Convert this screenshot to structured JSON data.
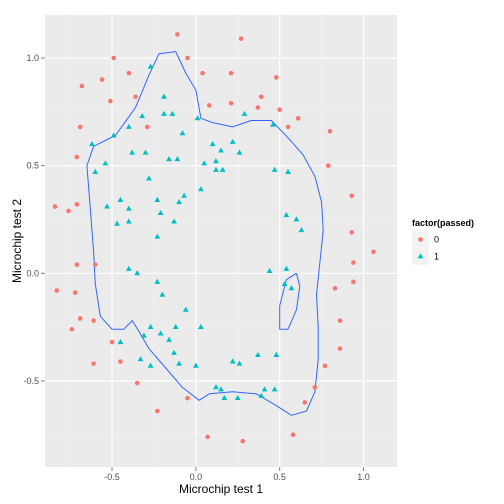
{
  "chart_data": {
    "type": "scatter",
    "xlabel": "Microchip test 1",
    "ylabel": "Microchip test 2",
    "xlim": [
      -0.9,
      1.2
    ],
    "ylim": [
      -0.9,
      1.2
    ],
    "x_ticks": [
      -0.5,
      0.0,
      0.5,
      1.0
    ],
    "x_tick_labels": [
      "-0.5",
      "0.0",
      "0.5",
      "1.0"
    ],
    "y_ticks": [
      -0.5,
      0.0,
      0.5,
      1.0
    ],
    "y_tick_labels": [
      "-0.5",
      "0.0",
      "0.5",
      "1.0"
    ],
    "grid": true,
    "panel_background": "#ebebeb",
    "grid_color": "#ffffff",
    "boundary_color": "#3366ff",
    "legend": {
      "title": "factor(passed)",
      "position": "right",
      "entries": [
        {
          "label": "0",
          "shape": "circle",
          "color": "#f8766d"
        },
        {
          "label": "1",
          "shape": "triangle",
          "color": "#00bfc4"
        }
      ]
    },
    "series": [
      {
        "label": "0",
        "shape": "circle",
        "color": "#f8766d",
        "points": [
          [
            -0.49,
            1.0
          ],
          [
            -0.11,
            1.11
          ],
          [
            -0.05,
            1.0
          ],
          [
            0.27,
            1.09
          ],
          [
            0.21,
            0.93
          ],
          [
            -0.4,
            0.93
          ],
          [
            -0.56,
            0.9
          ],
          [
            -0.68,
            0.87
          ],
          [
            -0.51,
            0.8
          ],
          [
            -0.36,
            0.82
          ],
          [
            0.04,
            0.93
          ],
          [
            0.08,
            0.78
          ],
          [
            0.21,
            0.79
          ],
          [
            0.39,
            0.82
          ],
          [
            0.48,
            0.91
          ],
          [
            0.37,
            0.77
          ],
          [
            0.5,
            0.76
          ],
          [
            0.61,
            0.72
          ],
          [
            0.55,
            0.68
          ],
          [
            0.8,
            0.66
          ],
          [
            0.79,
            0.5
          ],
          [
            0.93,
            0.36
          ],
          [
            0.93,
            0.19
          ],
          [
            0.94,
            0.05
          ],
          [
            1.06,
            0.1
          ],
          [
            0.94,
            -0.04
          ],
          [
            0.83,
            -0.07
          ],
          [
            0.86,
            -0.22
          ],
          [
            0.86,
            -0.35
          ],
          [
            0.77,
            -0.43
          ],
          [
            0.71,
            -0.53
          ],
          [
            0.65,
            -0.6
          ],
          [
            0.58,
            -0.75
          ],
          [
            0.28,
            -0.78
          ],
          [
            0.07,
            -0.76
          ],
          [
            -0.23,
            -0.64
          ],
          [
            -0.05,
            -0.58
          ],
          [
            -0.35,
            -0.51
          ],
          [
            -0.45,
            -0.41
          ],
          [
            -0.61,
            -0.42
          ],
          [
            -0.5,
            -0.32
          ],
          [
            -0.61,
            -0.22
          ],
          [
            -0.74,
            -0.26
          ],
          [
            -0.69,
            -0.21
          ],
          [
            -0.72,
            -0.09
          ],
          [
            -0.83,
            -0.08
          ],
          [
            -0.71,
            0.04
          ],
          [
            -0.6,
            0.04
          ],
          [
            -0.71,
            0.32
          ],
          [
            -0.84,
            0.31
          ],
          [
            -0.76,
            0.29
          ],
          [
            -0.71,
            0.54
          ],
          [
            -0.69,
            0.68
          ],
          [
            -0.29,
            0.68
          ]
        ]
      },
      {
        "label": "1",
        "shape": "triangle",
        "color": "#00bfc4",
        "points": [
          [
            -0.27,
            0.96
          ],
          [
            -0.32,
            0.73
          ],
          [
            -0.49,
            0.64
          ],
          [
            -0.4,
            0.68
          ],
          [
            -0.62,
            0.6
          ],
          [
            -0.19,
            0.74
          ],
          [
            -0.19,
            0.82
          ],
          [
            -0.14,
            0.74
          ],
          [
            -0.08,
            0.65
          ],
          [
            0.01,
            0.72
          ],
          [
            0.1,
            0.6
          ],
          [
            -0.16,
            0.53
          ],
          [
            -0.11,
            0.53
          ],
          [
            0.15,
            0.57
          ],
          [
            0.12,
            0.52
          ],
          [
            0.22,
            0.61
          ],
          [
            0.26,
            0.56
          ],
          [
            0.16,
            0.48
          ],
          [
            0.29,
            0.74
          ],
          [
            0.46,
            0.69
          ],
          [
            0.05,
            0.51
          ],
          [
            -0.3,
            0.56
          ],
          [
            -0.6,
            0.47
          ],
          [
            -0.54,
            0.51
          ],
          [
            -0.38,
            0.56
          ],
          [
            -0.53,
            0.31
          ],
          [
            -0.45,
            0.34
          ],
          [
            -0.4,
            0.3
          ],
          [
            -0.28,
            0.44
          ],
          [
            -0.23,
            0.34
          ],
          [
            -0.21,
            0.28
          ],
          [
            -0.4,
            0.24
          ],
          [
            -0.47,
            0.23
          ],
          [
            -0.23,
            0.17
          ],
          [
            -0.07,
            0.36
          ],
          [
            -0.1,
            0.33
          ],
          [
            0.03,
            0.39
          ],
          [
            -0.13,
            0.24
          ],
          [
            0.12,
            0.48
          ],
          [
            0.47,
            0.48
          ],
          [
            0.55,
            0.47
          ],
          [
            0.54,
            0.27
          ],
          [
            0.6,
            0.25
          ],
          [
            0.63,
            0.2
          ],
          [
            0.54,
            0.02
          ],
          [
            0.44,
            0.01
          ],
          [
            0.53,
            -0.05
          ],
          [
            0.57,
            -0.07
          ],
          [
            -0.4,
            0.02
          ],
          [
            -0.35,
            0.0
          ],
          [
            -0.23,
            -0.04
          ],
          [
            -0.2,
            -0.1
          ],
          [
            -0.27,
            -0.25
          ],
          [
            -0.31,
            -0.29
          ],
          [
            -0.21,
            -0.28
          ],
          [
            -0.06,
            -0.17
          ],
          [
            0.03,
            -0.25
          ],
          [
            -0.12,
            -0.25
          ],
          [
            -0.16,
            -0.31
          ],
          [
            -0.33,
            -0.4
          ],
          [
            -0.27,
            -0.43
          ],
          [
            -0.13,
            -0.37
          ],
          [
            -0.1,
            -0.42
          ],
          [
            0.0,
            -0.43
          ],
          [
            0.22,
            -0.41
          ],
          [
            0.37,
            -0.38
          ],
          [
            0.48,
            -0.38
          ],
          [
            0.47,
            -0.54
          ],
          [
            0.41,
            -0.54
          ],
          [
            0.26,
            -0.42
          ],
          [
            0.25,
            -0.58
          ],
          [
            0.17,
            -0.58
          ],
          [
            0.12,
            -0.53
          ],
          [
            0.39,
            -0.57
          ],
          [
            0.15,
            -0.54
          ],
          [
            -0.45,
            -0.32
          ]
        ]
      }
    ],
    "decision_boundary": [
      [
        [
          -0.22,
          1.02
        ],
        [
          -0.12,
          1.03
        ],
        [
          -0.06,
          0.93
        ],
        [
          0.0,
          0.85
        ],
        [
          0.03,
          0.72
        ],
        [
          0.1,
          0.7
        ],
        [
          0.22,
          0.68
        ],
        [
          0.33,
          0.71
        ],
        [
          0.45,
          0.71
        ],
        [
          0.55,
          0.63
        ],
        [
          0.64,
          0.55
        ],
        [
          0.71,
          0.45
        ],
        [
          0.75,
          0.33
        ],
        [
          0.76,
          0.2
        ],
        [
          0.74,
          0.05
        ],
        [
          0.72,
          -0.1
        ],
        [
          0.73,
          -0.25
        ],
        [
          0.73,
          -0.4
        ],
        [
          0.71,
          -0.55
        ],
        [
          0.66,
          -0.64
        ],
        [
          0.57,
          -0.66
        ],
        [
          0.47,
          -0.61
        ],
        [
          0.36,
          -0.56
        ],
        [
          0.22,
          -0.55
        ],
        [
          0.08,
          -0.56
        ],
        [
          0.02,
          -0.59
        ],
        [
          -0.08,
          -0.53
        ],
        [
          -0.18,
          -0.44
        ],
        [
          -0.28,
          -0.35
        ],
        [
          -0.34,
          -0.27
        ],
        [
          -0.38,
          -0.22
        ],
        [
          -0.43,
          -0.26
        ],
        [
          -0.5,
          -0.26
        ],
        [
          -0.57,
          -0.2
        ],
        [
          -0.6,
          -0.05
        ],
        [
          -0.61,
          0.1
        ],
        [
          -0.63,
          0.3
        ],
        [
          -0.65,
          0.5
        ],
        [
          -0.61,
          0.59
        ],
        [
          -0.48,
          0.64
        ],
        [
          -0.36,
          0.77
        ],
        [
          -0.28,
          0.92
        ],
        [
          -0.22,
          1.02
        ]
      ],
      [
        [
          0.6,
          0.0
        ],
        [
          0.54,
          -0.03
        ],
        [
          0.5,
          -0.15
        ],
        [
          0.5,
          -0.26
        ],
        [
          0.55,
          -0.26
        ],
        [
          0.6,
          -0.17
        ],
        [
          0.62,
          -0.06
        ],
        [
          0.6,
          0.0
        ]
      ]
    ]
  }
}
